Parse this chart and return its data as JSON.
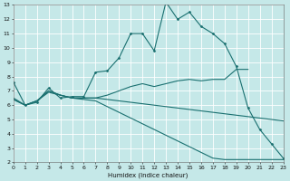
{
  "xlabel": "Humidex (Indice chaleur)",
  "xlim": [
    0,
    23
  ],
  "ylim": [
    2,
    13
  ],
  "xticks": [
    0,
    1,
    2,
    3,
    4,
    5,
    6,
    7,
    8,
    9,
    10,
    11,
    12,
    13,
    14,
    15,
    16,
    17,
    18,
    19,
    20,
    21,
    22,
    23
  ],
  "yticks": [
    2,
    3,
    4,
    5,
    6,
    7,
    8,
    9,
    10,
    11,
    12,
    13
  ],
  "bg_color": "#c5e8e8",
  "grid_color": "#ffffff",
  "line_color": "#1a7070",
  "curve_with_markers": {
    "x": [
      0,
      1,
      2,
      3,
      4,
      5,
      6,
      7,
      8,
      9,
      10,
      11,
      12,
      13,
      14,
      15,
      16,
      17,
      18,
      19,
      20,
      21,
      22,
      23
    ],
    "y": [
      7.6,
      6.0,
      6.2,
      7.2,
      6.5,
      6.6,
      6.6,
      8.3,
      8.4,
      9.3,
      11.0,
      11.0,
      9.8,
      13.2,
      12.0,
      12.5,
      11.5,
      11.0,
      10.3,
      8.7,
      5.8,
      4.3,
      3.3,
      2.3
    ]
  },
  "line_rising": {
    "x": [
      0,
      1,
      2,
      3,
      4,
      5,
      6,
      7,
      8,
      9,
      10,
      11,
      12,
      13,
      14,
      15,
      16,
      17,
      18,
      19,
      20
    ],
    "y": [
      6.4,
      6.0,
      6.3,
      6.9,
      6.7,
      6.5,
      6.5,
      6.5,
      6.7,
      7.0,
      7.3,
      7.5,
      7.3,
      7.5,
      7.7,
      7.8,
      7.7,
      7.8,
      7.8,
      8.5,
      8.5
    ]
  },
  "line_flat_dropping": {
    "x": [
      0,
      1,
      2,
      3,
      4,
      5,
      6,
      7,
      8,
      9,
      10,
      11,
      12,
      13,
      14,
      15,
      16,
      17,
      18,
      19,
      20,
      21,
      22,
      23
    ],
    "y": [
      6.4,
      6.0,
      6.3,
      7.0,
      6.7,
      6.5,
      6.5,
      6.5,
      6.4,
      6.3,
      6.2,
      6.1,
      6.0,
      5.9,
      5.8,
      5.7,
      5.6,
      5.5,
      5.4,
      5.3,
      5.2,
      5.1,
      5.0,
      4.9
    ]
  },
  "line_falling": {
    "x": [
      0,
      1,
      2,
      3,
      4,
      5,
      6,
      7,
      8,
      9,
      10,
      11,
      12,
      13,
      14,
      15,
      16,
      17,
      18,
      19,
      20,
      21,
      22,
      23
    ],
    "y": [
      6.5,
      6.0,
      6.3,
      7.0,
      6.7,
      6.5,
      6.4,
      6.3,
      5.9,
      5.5,
      5.1,
      4.7,
      4.3,
      3.9,
      3.5,
      3.1,
      2.7,
      2.3,
      2.2,
      2.2,
      2.2,
      2.2,
      2.2,
      2.2
    ]
  }
}
